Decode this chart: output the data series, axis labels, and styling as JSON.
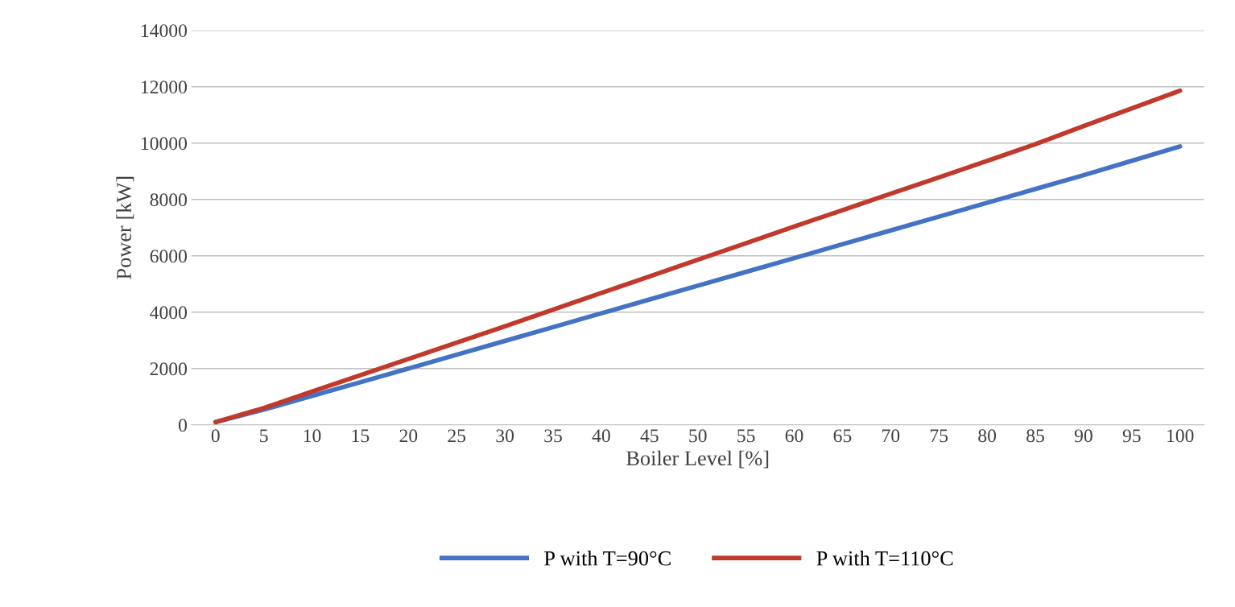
{
  "chart_data": {
    "type": "line",
    "xlabel": "Boiler Level [%]",
    "ylabel": "Power [kW]",
    "categories": [
      "0",
      "5",
      "10",
      "15",
      "20",
      "25",
      "30",
      "35",
      "40",
      "45",
      "50",
      "55",
      "60",
      "65",
      "70",
      "75",
      "80",
      "85",
      "90",
      "95",
      "100"
    ],
    "series": [
      {
        "name": "P with T=90°C",
        "color": "#4472c4",
        "values": [
          100,
          540,
          1030,
          1510,
          2000,
          2490,
          2980,
          3470,
          3960,
          4450,
          4940,
          5430,
          5920,
          6410,
          6900,
          7390,
          7880,
          8370,
          8860,
          9370,
          9880
        ]
      },
      {
        "name": "P with T=110°C",
        "color": "#c0392b",
        "values": [
          100,
          600,
          1180,
          1760,
          2340,
          2920,
          3500,
          4090,
          4680,
          5270,
          5860,
          6450,
          7040,
          7620,
          8200,
          8780,
          9370,
          9960,
          10600,
          11230,
          11860
        ]
      }
    ],
    "ylim": [
      0,
      14000
    ],
    "yticks": [
      0,
      2000,
      4000,
      6000,
      8000,
      10000,
      12000,
      14000
    ],
    "grid": "y",
    "legend": "bottom",
    "line_style": "solid",
    "marker": "none"
  }
}
